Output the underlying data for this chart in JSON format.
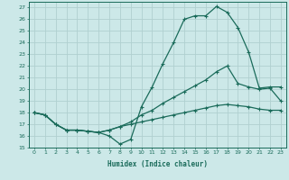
{
  "xlabel": "Humidex (Indice chaleur)",
  "bg_color": "#cce8e8",
  "grid_color": "#b0d0d0",
  "line_color": "#1a6b5a",
  "xlim": [
    -0.5,
    23.5
  ],
  "ylim": [
    15,
    27.5
  ],
  "xticks": [
    0,
    1,
    2,
    3,
    4,
    5,
    6,
    7,
    8,
    9,
    10,
    11,
    12,
    13,
    14,
    15,
    16,
    17,
    18,
    19,
    20,
    21,
    22,
    23
  ],
  "yticks": [
    15,
    16,
    17,
    18,
    19,
    20,
    21,
    22,
    23,
    24,
    25,
    26,
    27
  ],
  "line1_x": [
    0,
    1,
    2,
    3,
    4,
    5,
    6,
    7,
    8,
    9,
    10,
    11,
    12,
    13,
    14,
    15,
    16,
    17,
    18,
    19,
    20,
    21,
    22,
    23
  ],
  "line1_y": [
    18.0,
    17.8,
    17.0,
    16.5,
    16.5,
    16.4,
    16.3,
    16.0,
    15.3,
    15.7,
    18.5,
    20.2,
    22.2,
    24.0,
    26.0,
    26.3,
    26.3,
    27.1,
    26.6,
    25.3,
    23.2,
    20.1,
    20.2,
    20.2
  ],
  "line2_x": [
    0,
    1,
    2,
    3,
    4,
    5,
    6,
    7,
    8,
    9,
    10,
    11,
    12,
    13,
    14,
    15,
    16,
    17,
    18,
    19,
    20,
    21,
    22,
    23
  ],
  "line2_y": [
    18.0,
    17.8,
    17.0,
    16.5,
    16.5,
    16.4,
    16.3,
    16.5,
    16.8,
    17.2,
    17.8,
    18.2,
    18.8,
    19.3,
    19.8,
    20.3,
    20.8,
    21.5,
    22.0,
    20.5,
    20.2,
    20.0,
    20.1,
    19.0
  ],
  "line3_x": [
    0,
    1,
    2,
    3,
    4,
    5,
    6,
    7,
    8,
    9,
    10,
    11,
    12,
    13,
    14,
    15,
    16,
    17,
    18,
    19,
    20,
    21,
    22,
    23
  ],
  "line3_y": [
    18.0,
    17.8,
    17.0,
    16.5,
    16.5,
    16.4,
    16.3,
    16.5,
    16.8,
    17.0,
    17.2,
    17.4,
    17.6,
    17.8,
    18.0,
    18.2,
    18.4,
    18.6,
    18.7,
    18.6,
    18.5,
    18.3,
    18.2,
    18.2
  ]
}
